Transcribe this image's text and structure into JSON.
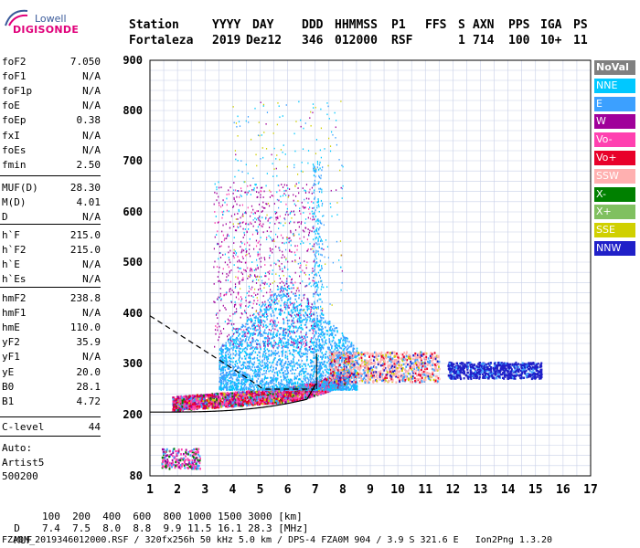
{
  "logo": {
    "line1": "Lowell",
    "line2": "DIGISONDE"
  },
  "header": {
    "labels": [
      "Station",
      "YYYY",
      "DAY",
      "DDD",
      "HHMMSS",
      "P1",
      "FFS",
      "S",
      "AXN",
      "PPS",
      "IGA",
      "PS"
    ],
    "values": [
      "Fortaleza",
      "2019",
      "Dez12",
      "346",
      "012000",
      "RSF",
      "",
      "1",
      "714",
      "100",
      "10+",
      "11"
    ]
  },
  "params": {
    "group1": [
      {
        "name": "foF2",
        "value": "7.050"
      },
      {
        "name": "foF1",
        "value": "N/A"
      },
      {
        "name": "foF1p",
        "value": "N/A"
      },
      {
        "name": "foE",
        "value": "N/A"
      },
      {
        "name": "foEp",
        "value": "0.38"
      },
      {
        "name": "fxI",
        "value": "N/A"
      },
      {
        "name": "foEs",
        "value": "N/A"
      },
      {
        "name": "fmin",
        "value": "2.50"
      }
    ],
    "group2": [
      {
        "name": "MUF(D)",
        "value": "28.30"
      },
      {
        "name": "M(D)",
        "value": "4.01"
      },
      {
        "name": "D",
        "value": "N/A"
      }
    ],
    "group3": [
      {
        "name": "h`F",
        "value": "215.0"
      },
      {
        "name": "h`F2",
        "value": "215.0"
      },
      {
        "name": "h`E",
        "value": "N/A"
      },
      {
        "name": "h`Es",
        "value": "N/A"
      }
    ],
    "group4": [
      {
        "name": "hmF2",
        "value": "238.8"
      },
      {
        "name": "hmF1",
        "value": "N/A"
      },
      {
        "name": "hmE",
        "value": "110.0"
      },
      {
        "name": "yF2",
        "value": "35.9"
      },
      {
        "name": "yF1",
        "value": "N/A"
      },
      {
        "name": "yE",
        "value": "20.0"
      },
      {
        "name": "B0",
        "value": "28.1"
      },
      {
        "name": "B1",
        "value": "4.72"
      }
    ],
    "group5": [
      {
        "name": "C-level",
        "value": "44"
      }
    ],
    "auto": {
      "line1": "Auto:",
      "line2": "Artist5",
      "line3": "500200"
    }
  },
  "legend": [
    {
      "label": "NoVal",
      "color": "#808080",
      "text": "#ffffff"
    },
    {
      "label": "NNE",
      "color": "#00c8ff",
      "text": "#ffffff"
    },
    {
      "label": "E",
      "color": "#3ca0ff",
      "text": "#ffffff"
    },
    {
      "label": "W",
      "color": "#a0009a",
      "text": "#ffffff"
    },
    {
      "label": "Vo-",
      "color": "#ff40b0",
      "text": "#ffffff"
    },
    {
      "label": "Vo+",
      "color": "#e8002a",
      "text": "#ffffff"
    },
    {
      "label": "SSW",
      "color": "#ffb0b0",
      "text": "#ffffff"
    },
    {
      "label": "X-",
      "color": "#008000",
      "text": "#ffffff"
    },
    {
      "label": "X+",
      "color": "#80c060",
      "text": "#ffffff"
    },
    {
      "label": "SSE",
      "color": "#d0d000",
      "text": "#ffffff"
    },
    {
      "label": "NNW",
      "color": "#2020c8",
      "text": "#ffffff"
    }
  ],
  "chart_data": {
    "type": "scatter",
    "x_ticks": [
      "1",
      "2",
      "3",
      "4",
      "5",
      "6",
      "7",
      "8",
      "9",
      "10",
      "11",
      "12",
      "13",
      "14",
      "15",
      "16",
      "17"
    ],
    "y_ticks": [
      "900",
      "800",
      "700",
      "600",
      "500",
      "400",
      "300",
      "200",
      "80"
    ],
    "xlim": [
      1,
      17
    ],
    "grid": true,
    "x_unit": "MHz",
    "y_unit": "km"
  },
  "footer": {
    "d_label": "D",
    "d_values": "100  200  400  600  800 1000 1500 3000 [km]",
    "muf_label": "MUF",
    "muf_values": "7.4  7.5  8.0  8.8  9.9 11.5 16.1 28.3 [MHz]",
    "info": "FZA0M_2019346012000.RSF / 320fx256h 50 kHz 5.0 km / DPS-4 FZA0M 904 / 3.9 S 321.6 E   Ion2Png 1.3.20"
  }
}
